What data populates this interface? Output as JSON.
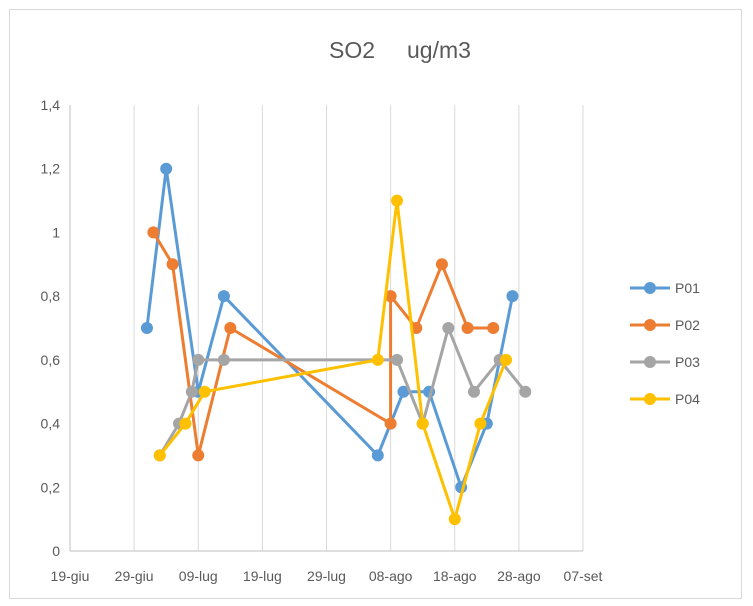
{
  "chart_data": {
    "type": "line",
    "title": "SO2     ug/m3",
    "xlabel": "",
    "ylabel": "",
    "ylim": [
      0,
      1.4
    ],
    "y_ticks": [
      "0",
      "0,2",
      "0,4",
      "0,6",
      "0,8",
      "1",
      "1,2",
      "1,4"
    ],
    "x_range": [
      "2017-06-19",
      "2017-09-07"
    ],
    "x_ticks": [
      {
        "date": "2017-06-19",
        "label": "19-giu"
      },
      {
        "date": "2017-06-29",
        "label": "29-giu"
      },
      {
        "date": "2017-07-09",
        "label": "09-lug"
      },
      {
        "date": "2017-07-19",
        "label": "19-lug"
      },
      {
        "date": "2017-07-29",
        "label": "29-lug"
      },
      {
        "date": "2017-08-08",
        "label": "08-ago"
      },
      {
        "date": "2017-08-18",
        "label": "18-ago"
      },
      {
        "date": "2017-08-28",
        "label": "28-ago"
      },
      {
        "date": "2017-09-07",
        "label": "07-set"
      }
    ],
    "grid": "vertical",
    "legend_position": "right",
    "series": [
      {
        "name": "P01",
        "color": "#5b9bd5",
        "points": [
          {
            "x": "2017-07-01",
            "y": 0.7
          },
          {
            "x": "2017-07-04",
            "y": 1.2
          },
          {
            "x": "2017-07-09",
            "y": 0.5
          },
          {
            "x": "2017-07-13",
            "y": 0.8
          },
          {
            "x": "2017-08-06",
            "y": 0.3
          },
          {
            "x": "2017-08-10",
            "y": 0.5
          },
          {
            "x": "2017-08-14",
            "y": 0.5
          },
          {
            "x": "2017-08-19",
            "y": 0.2
          },
          {
            "x": "2017-08-23",
            "y": 0.4
          },
          {
            "x": "2017-08-27",
            "y": 0.8
          }
        ]
      },
      {
        "name": "P02",
        "color": "#ed7d31",
        "points": [
          {
            "x": "2017-07-02",
            "y": 1.0
          },
          {
            "x": "2017-07-05",
            "y": 0.9
          },
          {
            "x": "2017-07-09",
            "y": 0.3
          },
          {
            "x": "2017-07-14",
            "y": 0.7
          },
          {
            "x": "2017-08-08",
            "y": 0.4
          },
          {
            "x": "2017-08-08",
            "y": 0.8
          },
          {
            "x": "2017-08-12",
            "y": 0.7
          },
          {
            "x": "2017-08-16",
            "y": 0.9
          },
          {
            "x": "2017-08-20",
            "y": 0.7
          },
          {
            "x": "2017-08-24",
            "y": 0.7
          }
        ]
      },
      {
        "name": "P03",
        "color": "#a5a5a5",
        "points": [
          {
            "x": "2017-07-03",
            "y": 0.3
          },
          {
            "x": "2017-07-06",
            "y": 0.4
          },
          {
            "x": "2017-07-08",
            "y": 0.5
          },
          {
            "x": "2017-07-09",
            "y": 0.6
          },
          {
            "x": "2017-07-13",
            "y": 0.6
          },
          {
            "x": "2017-08-09",
            "y": 0.6
          },
          {
            "x": "2017-08-13",
            "y": 0.4
          },
          {
            "x": "2017-08-17",
            "y": 0.7
          },
          {
            "x": "2017-08-21",
            "y": 0.5
          },
          {
            "x": "2017-08-25",
            "y": 0.6
          },
          {
            "x": "2017-08-29",
            "y": 0.5
          }
        ]
      },
      {
        "name": "P04",
        "color": "#ffc000",
        "points": [
          {
            "x": "2017-07-03",
            "y": 0.3
          },
          {
            "x": "2017-07-07",
            "y": 0.4
          },
          {
            "x": "2017-07-10",
            "y": 0.5
          },
          {
            "x": "2017-08-06",
            "y": 0.6
          },
          {
            "x": "2017-08-09",
            "y": 1.1
          },
          {
            "x": "2017-08-13",
            "y": 0.4
          },
          {
            "x": "2017-08-18",
            "y": 0.1
          },
          {
            "x": "2017-08-22",
            "y": 0.4
          },
          {
            "x": "2017-08-26",
            "y": 0.6
          }
        ]
      }
    ]
  }
}
